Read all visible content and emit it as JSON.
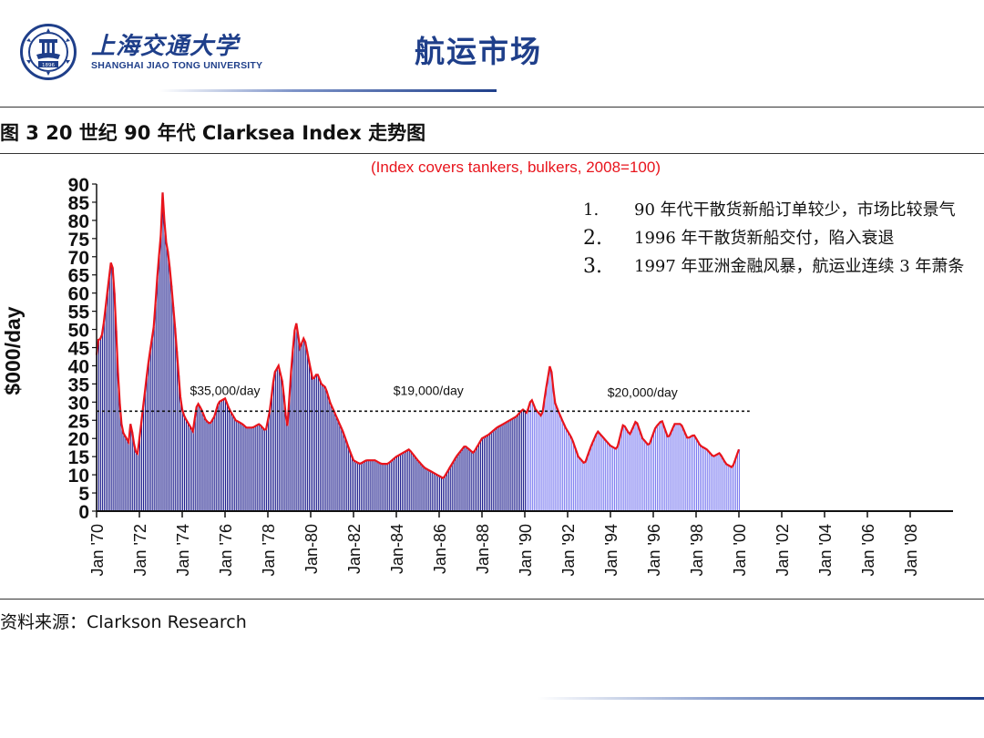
{
  "header": {
    "university_cn": "上海交通大学",
    "university_en": "SHANGHAI JIAO TONG UNIVERSITY",
    "slide_title": "航运市场",
    "logo_year": "1896"
  },
  "figure": {
    "title": "图 3 20 世纪 90 年代 Clarksea Index 走势图",
    "source": "资料来源：Clarkson Research"
  },
  "annotations": [
    {
      "num": "1.",
      "text": "90 年代干散货新船订单较少，市场比较景气"
    },
    {
      "num": "2.",
      "text": "1996 年干散货新船交付，陷入衰退"
    },
    {
      "num": "3.",
      "text": "1997 年亚洲金融风暴，航运业连续 3 年萧条"
    }
  ],
  "colors": {
    "dark_bar": "#1c1c8c",
    "light_bar": "#7b7bf0",
    "line": "#e8141c",
    "brand": "#1f3f8a"
  },
  "chart_data": {
    "type": "bar",
    "subtitle": "(Index covers tankers, bulkers, 2008=100)",
    "ylabel": "$000/day",
    "ylim": [
      0,
      90
    ],
    "yticks": [
      0,
      5,
      10,
      15,
      20,
      25,
      30,
      35,
      40,
      45,
      50,
      55,
      60,
      65,
      70,
      75,
      80,
      85,
      90
    ],
    "xlim": [
      1970,
      2010
    ],
    "xtick_labels": [
      "Jan '70",
      "Jan '72",
      "Jan '74",
      "Jan '76",
      "Jan '78",
      "Jan-80",
      "Jan-82",
      "Jan-84",
      "Jan-86",
      "Jan-88",
      "Jan '90",
      "Jan '92",
      "Jan '94",
      "Jan '96",
      "Jan '98",
      "Jan '00",
      "Jan '02",
      "Jan '04",
      "Jan '06",
      "Jan '08"
    ],
    "xtick_years": [
      1970,
      1972,
      1974,
      1976,
      1978,
      1980,
      1982,
      1984,
      1986,
      1988,
      1990,
      1992,
      1994,
      1996,
      1998,
      2000,
      2002,
      2004,
      2006,
      2008
    ],
    "reference_line": {
      "value": 27.5,
      "x_from": 1970,
      "x_to": 2000.5
    },
    "period_labels": [
      {
        "text": "$35,000/day",
        "x": 1976,
        "y": 32
      },
      {
        "text": "$19,000/day",
        "x": 1985.5,
        "y": 32
      },
      {
        "text": "$20,000/day",
        "x": 1995.5,
        "y": 31.5
      }
    ],
    "highlight_from": 1990,
    "series": [
      {
        "x": [
          1970.0,
          1970.1,
          1970.2,
          1970.3,
          1970.4,
          1970.5,
          1970.6,
          1970.7,
          1970.8,
          1970.9,
          1971.0,
          1971.1,
          1971.2,
          1971.3,
          1971.4,
          1971.5,
          1971.6,
          1971.7,
          1971.8,
          1971.9,
          1972.0,
          1972.2,
          1972.4,
          1972.5,
          1972.7,
          1972.8,
          1973.0,
          1973.1,
          1973.2,
          1973.3,
          1973.4,
          1973.5,
          1973.6,
          1973.7,
          1973.8,
          1973.9,
          1974.0,
          1974.1,
          1974.3,
          1974.5,
          1974.7,
          1974.9,
          1975.1,
          1975.3,
          1975.5,
          1975.7,
          1976.0,
          1976.2,
          1976.5,
          1976.8,
          1977.0,
          1977.3,
          1977.6,
          1977.9,
          1978.1,
          1978.3,
          1978.5,
          1978.7,
          1978.9,
          1979.1,
          1979.3,
          1979.5,
          1979.7,
          1979.9,
          1980.1,
          1980.3,
          1980.5,
          1980.7,
          1980.9,
          1981.2,
          1981.5,
          1981.8,
          1982.0,
          1982.3,
          1982.6,
          1983.0,
          1983.3,
          1983.6,
          1984.0,
          1984.3,
          1984.6,
          1985.0,
          1985.3,
          1985.6,
          1985.9,
          1986.2,
          1986.5,
          1986.8,
          1987.2,
          1987.6,
          1988.0,
          1988.3,
          1988.7,
          1989.0,
          1989.3,
          1989.6,
          1989.9,
          1990.1,
          1990.3,
          1990.5,
          1990.8,
          1991.0,
          1991.2,
          1991.4,
          1991.6,
          1991.9,
          1992.2,
          1992.5,
          1992.8,
          1993.1,
          1993.4,
          1993.7,
          1994.0,
          1994.3,
          1994.6,
          1994.9,
          1995.2,
          1995.5,
          1995.8,
          1996.1,
          1996.4,
          1996.7,
          1997.0,
          1997.3,
          1997.6,
          1997.9,
          1998.2,
          1998.5,
          1998.8,
          1999.1,
          1999.4,
          1999.7,
          2000.0
        ],
        "values": [
          43,
          48,
          47,
          50,
          55,
          60,
          65,
          70,
          64,
          52,
          38,
          28,
          22,
          21,
          20,
          19,
          25,
          20,
          17,
          15,
          20,
          30,
          40,
          44,
          52,
          62,
          76,
          90,
          75,
          73,
          68,
          62,
          55,
          48,
          40,
          32,
          28,
          26,
          24,
          22,
          30,
          28,
          25,
          24,
          26,
          30,
          31,
          28,
          25,
          24,
          23,
          23,
          24,
          22,
          28,
          38,
          40,
          35,
          22,
          40,
          53,
          45,
          48,
          42,
          36,
          38,
          35,
          34,
          30,
          26,
          22,
          17,
          14,
          13,
          14,
          14,
          13,
          13,
          15,
          16,
          17,
          14,
          12,
          11,
          10,
          9,
          12,
          15,
          18,
          16,
          20,
          21,
          23,
          24,
          25,
          26,
          28,
          27,
          31,
          28,
          26,
          34,
          41,
          30,
          27,
          23,
          20,
          15,
          13,
          18,
          22,
          20,
          18,
          17,
          24,
          21,
          25,
          20,
          18,
          23,
          25,
          20,
          24,
          24,
          20,
          21,
          18,
          17,
          15,
          16,
          13,
          12,
          17
        ]
      }
    ]
  }
}
